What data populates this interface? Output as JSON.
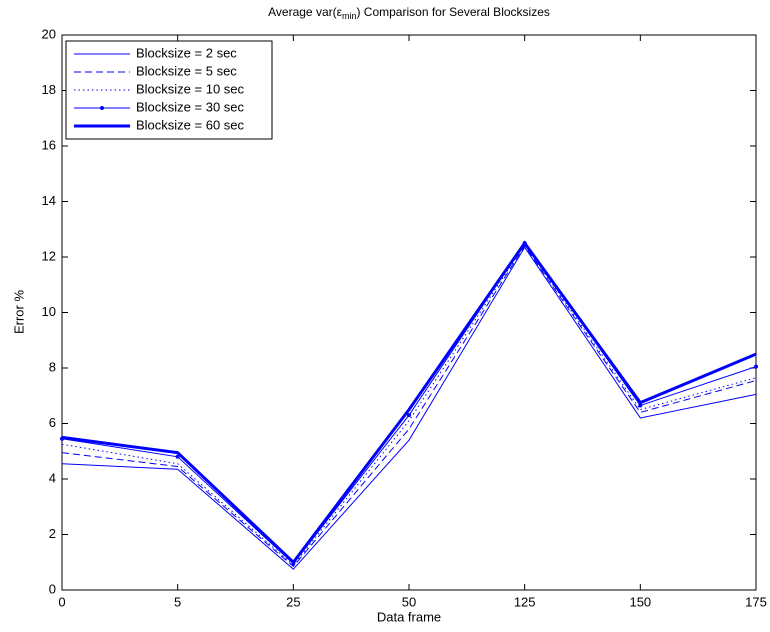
{
  "chart_data": {
    "type": "line",
    "title": [
      "Average var(ε",
      "min",
      ") Comparison for Several Blocksizes"
    ],
    "xlabel": "Data frame",
    "ylabel": "Error %",
    "categories": [
      "0",
      "5",
      "25",
      "50",
      "125",
      "150",
      "175"
    ],
    "ylim": [
      0,
      20
    ],
    "yticks": [
      0,
      2,
      4,
      6,
      8,
      10,
      12,
      14,
      16,
      18,
      20
    ],
    "legend": "upper left",
    "series": [
      {
        "name": "Blocksize = 2 sec",
        "color": "#0000ff",
        "line_style": "solid",
        "line_width": 1,
        "values": [
          4.55,
          4.35,
          0.75,
          5.4,
          12.35,
          6.2,
          7.05
        ]
      },
      {
        "name": "Blocksize = 5 sec",
        "color": "#0000ff",
        "line_style": "dashed",
        "line_width": 1,
        "values": [
          4.95,
          4.45,
          0.85,
          5.8,
          12.4,
          6.4,
          7.55
        ]
      },
      {
        "name": "Blocksize = 10 sec",
        "color": "#0000ff",
        "line_style": "dotted",
        "line_width": 1,
        "values": [
          5.25,
          4.55,
          0.9,
          6.1,
          12.45,
          6.5,
          7.65
        ]
      },
      {
        "name": "Blocksize = 30 sec",
        "color": "#0000ff",
        "line_style": "solid",
        "line_width": 1,
        "marker": "dot",
        "values": [
          5.45,
          4.8,
          0.95,
          6.3,
          12.5,
          6.65,
          8.05
        ]
      },
      {
        "name": "Blocksize = 60 sec",
        "color": "#0000ff",
        "line_style": "solid",
        "line_width": 3,
        "values": [
          5.5,
          4.95,
          1.0,
          6.5,
          12.5,
          6.75,
          8.5
        ]
      }
    ]
  }
}
